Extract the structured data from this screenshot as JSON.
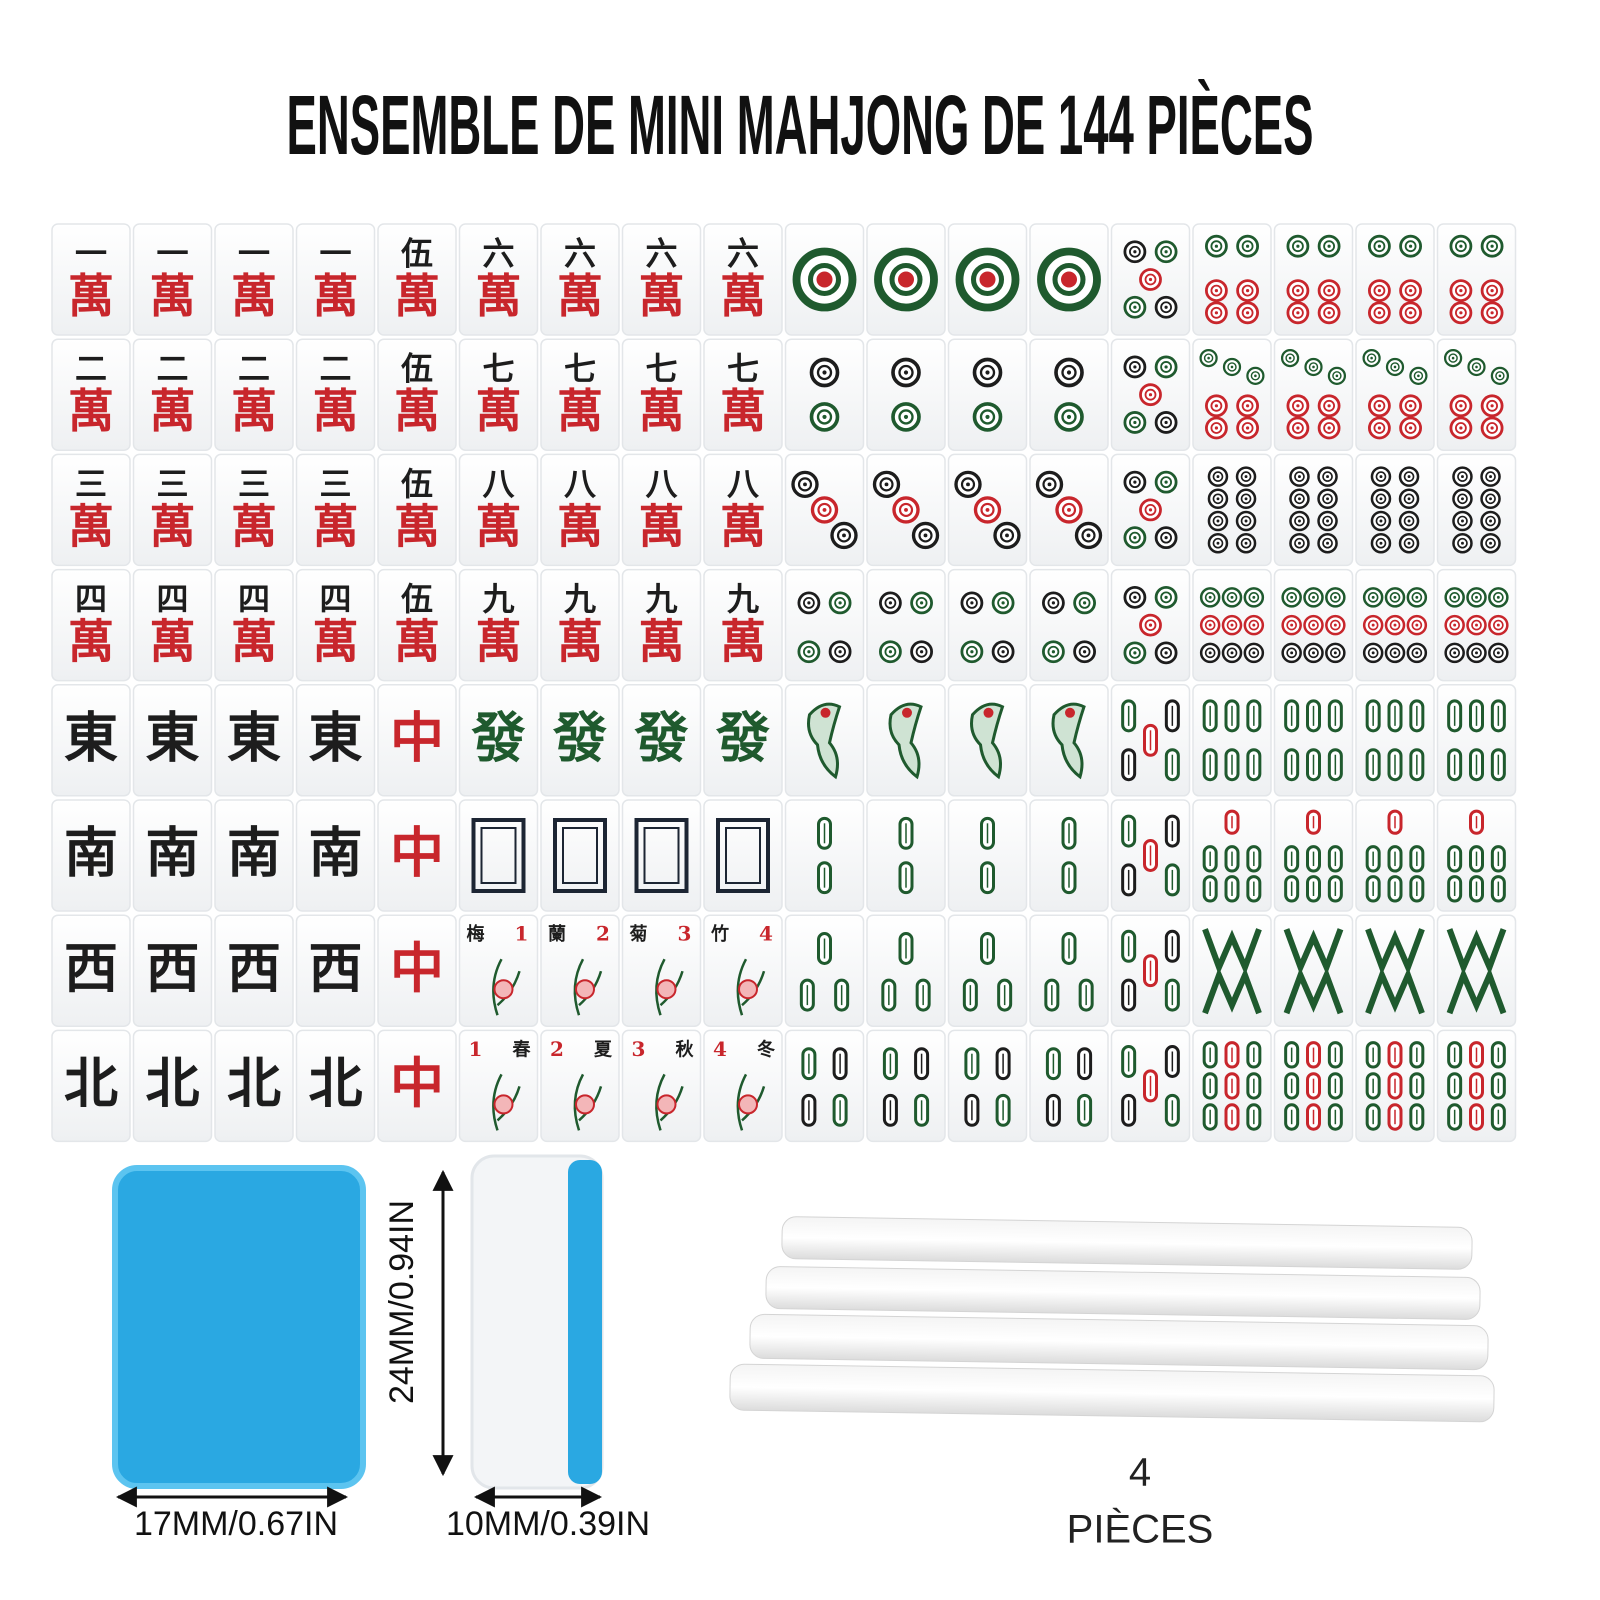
{
  "title": "ENSEMBLE DE MINI MAHJONG DE 144 PIÈCES",
  "tiles": [
    [
      [
        "一",
        "萬"
      ],
      [
        "一",
        "萬"
      ],
      [
        "一",
        "萬"
      ],
      [
        "一",
        "萬"
      ],
      [
        "伍",
        "萬"
      ],
      [
        "六",
        "萬"
      ],
      [
        "六",
        "萬"
      ],
      [
        "六",
        "萬"
      ],
      [
        "六",
        "萬"
      ]
    ],
    [
      [
        "二",
        "萬"
      ],
      [
        "二",
        "萬"
      ],
      [
        "二",
        "萬"
      ],
      [
        "二",
        "萬"
      ],
      [
        "伍",
        "萬"
      ],
      [
        "七",
        "萬"
      ],
      [
        "七",
        "萬"
      ],
      [
        "七",
        "萬"
      ],
      [
        "七",
        "萬"
      ]
    ],
    [
      [
        "三",
        "萬"
      ],
      [
        "三",
        "萬"
      ],
      [
        "三",
        "萬"
      ],
      [
        "三",
        "萬"
      ],
      [
        "伍",
        "萬"
      ],
      [
        "八",
        "萬"
      ],
      [
        "八",
        "萬"
      ],
      [
        "八",
        "萬"
      ],
      [
        "八",
        "萬"
      ]
    ],
    [
      [
        "四",
        "萬"
      ],
      [
        "四",
        "萬"
      ],
      [
        "四",
        "萬"
      ],
      [
        "四",
        "萬"
      ],
      [
        "伍",
        "萬"
      ],
      [
        "九",
        "萬"
      ],
      [
        "九",
        "萬"
      ],
      [
        "九",
        "萬"
      ],
      [
        "九",
        "萬"
      ]
    ],
    [
      "東",
      "東",
      "東",
      "東",
      "中",
      "發",
      "發",
      "發",
      "發"
    ],
    [
      "南",
      "南",
      "南",
      "南",
      "中",
      null,
      null,
      null,
      null
    ],
    [
      "西",
      "西",
      "西",
      "西",
      "中",
      [
        "梅",
        1
      ],
      [
        "蘭",
        2
      ],
      [
        "菊",
        3
      ],
      [
        "竹",
        4
      ]
    ],
    [
      "北",
      "北",
      "北",
      "北",
      "中",
      [
        1,
        "春"
      ],
      [
        2,
        "夏"
      ],
      [
        3,
        "秋"
      ],
      [
        4,
        "冬"
      ]
    ]
  ],
  "dimensions": {
    "height": "24MM/0.94IN",
    "width": "17MM/0.67IN",
    "depth": "10MM/0.39IN"
  },
  "sticks": {
    "count": 4,
    "label": "PIÈCES"
  }
}
